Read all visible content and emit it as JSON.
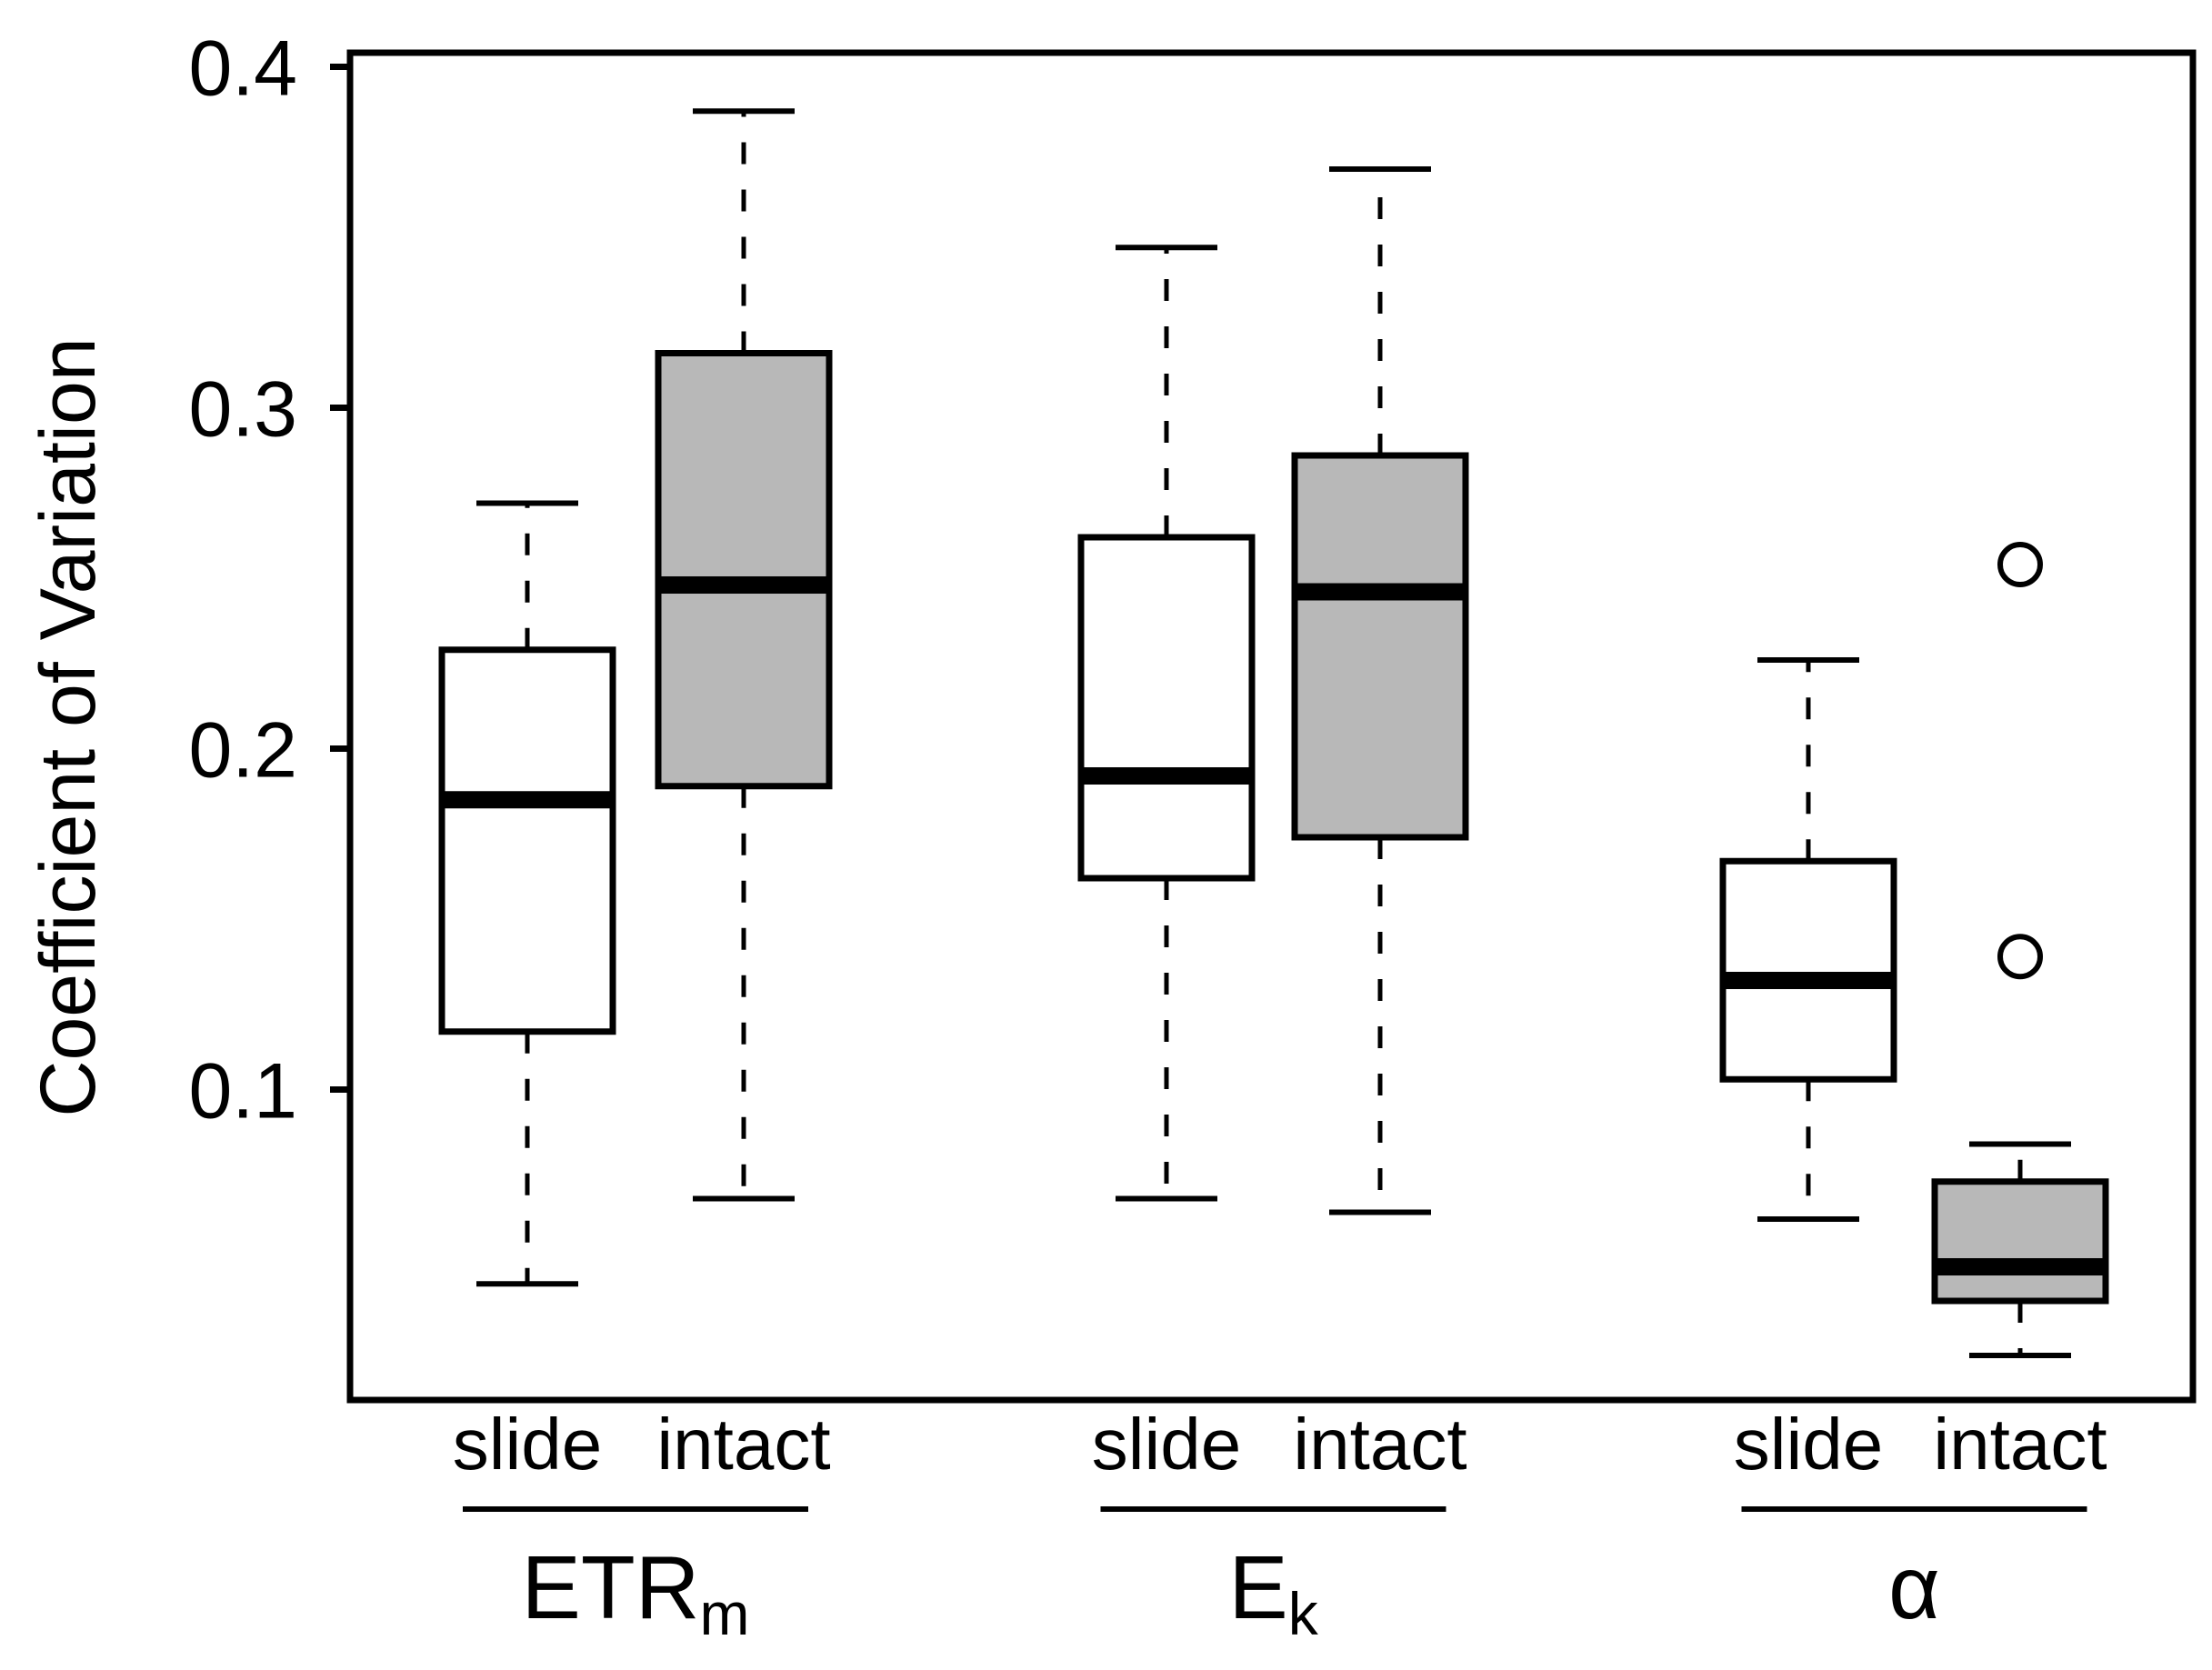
{
  "chart_data": {
    "type": "boxplot",
    "ylabel": "Coefficient of Variation",
    "ylim": [
      0.01,
      0.405
    ],
    "y_ticks": [
      0.1,
      0.2,
      0.3,
      0.4
    ],
    "y_tick_labels": [
      "0.1",
      "0.2",
      "0.3",
      "0.4"
    ],
    "groups": [
      {
        "name_main": "ETR",
        "name_sub": "m",
        "boxes": [
          {
            "label": "slide",
            "fill": "white",
            "whisker_low": 0.043,
            "q1": 0.117,
            "median": 0.185,
            "q3": 0.229,
            "whisker_high": 0.272,
            "outliers": []
          },
          {
            "label": "intact",
            "fill": "gray",
            "whisker_low": 0.068,
            "q1": 0.189,
            "median": 0.248,
            "q3": 0.316,
            "whisker_high": 0.387,
            "outliers": []
          }
        ]
      },
      {
        "name_main": "E",
        "name_sub": "k",
        "boxes": [
          {
            "label": "slide",
            "fill": "white",
            "whisker_low": 0.068,
            "q1": 0.162,
            "median": 0.192,
            "q3": 0.262,
            "whisker_high": 0.347,
            "outliers": []
          },
          {
            "label": "intact",
            "fill": "gray",
            "whisker_low": 0.064,
            "q1": 0.174,
            "median": 0.246,
            "q3": 0.286,
            "whisker_high": 0.37,
            "outliers": []
          }
        ]
      },
      {
        "name_main": "α",
        "name_sub": "",
        "boxes": [
          {
            "label": "slide",
            "fill": "white",
            "whisker_low": 0.062,
            "q1": 0.103,
            "median": 0.132,
            "q3": 0.167,
            "whisker_high": 0.226,
            "outliers": []
          },
          {
            "label": "intact",
            "fill": "gray",
            "whisker_low": 0.022,
            "q1": 0.038,
            "median": 0.048,
            "q3": 0.073,
            "whisker_high": 0.084,
            "outliers": [
              0.139,
              0.254
            ]
          }
        ]
      }
    ]
  },
  "colors": {
    "line": "#000000",
    "box_white": "#ffffff",
    "box_gray": "#b8b8b8",
    "background": "#ffffff"
  }
}
